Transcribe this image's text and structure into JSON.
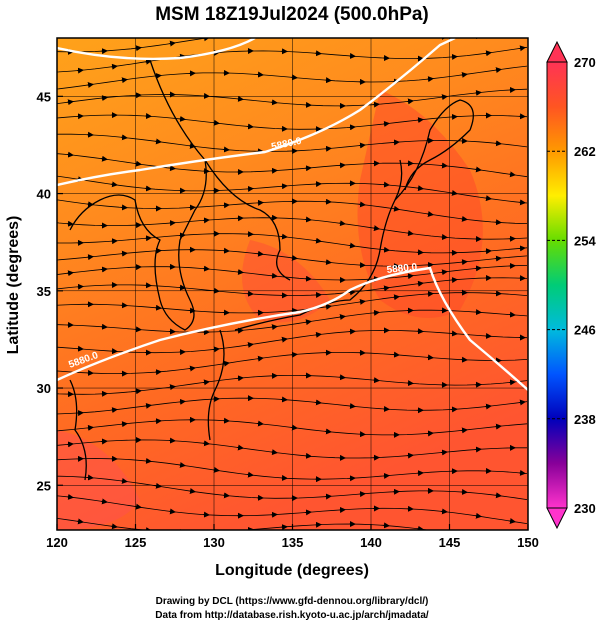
{
  "title": "MSM 18Z19Jul2024 (500.0hPa)",
  "xlabel": "Longitude (degrees)",
  "ylabel": "Latitude  (degrees)",
  "x_ticks": [
    "120",
    "125",
    "130",
    "135",
    "140",
    "145",
    "150"
  ],
  "y_ticks": [
    "25",
    "30",
    "35",
    "40",
    "45"
  ],
  "colorbar": {
    "min": 230,
    "max": 270,
    "labels": [
      "270",
      "262",
      "254",
      "246",
      "238",
      "230"
    ],
    "colors": [
      "#ff3355",
      "#ff5522",
      "#ff9900",
      "#ffee00",
      "#66dd00",
      "#00cc77",
      "#00bbdd",
      "#0055ff",
      "#0000bb",
      "#880099",
      "#ff33cc"
    ]
  },
  "contours": [
    {
      "label": "5880.0"
    },
    {
      "label": "5880.0"
    },
    {
      "label": "5880.0"
    }
  ],
  "credits": {
    "line1": "Drawing by DCL (https://www.gfd-dennou.org/library/dcl/)",
    "line2": "Data from http://database.rish.kyoto-u.ac.jp/arch/jmadata/"
  }
}
